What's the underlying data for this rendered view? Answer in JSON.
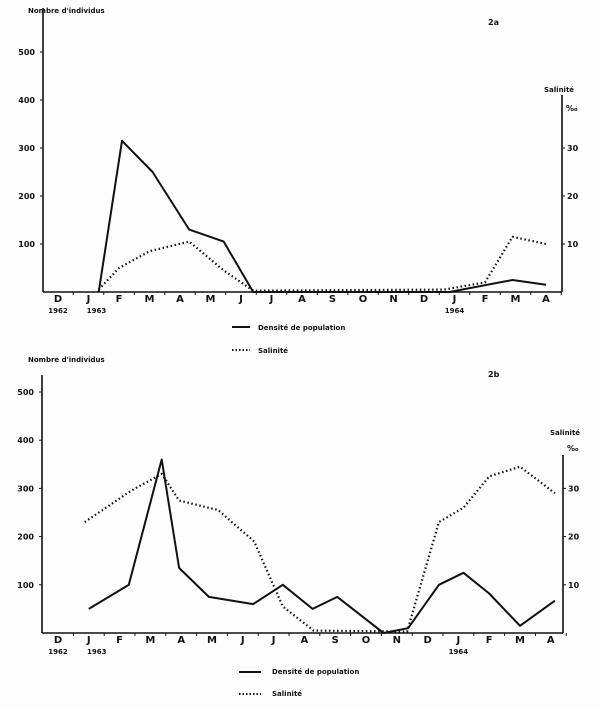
{
  "chart_data": [
    {
      "type": "line",
      "panel_label": "2a",
      "ylabel_left": "Nombre d'individus",
      "ylabel_right": "Salinité",
      "ylabel_right_unit": "‰",
      "x_tick_labels": [
        "D",
        "J",
        "F",
        "M",
        "A",
        "M",
        "J",
        "J",
        "A",
        "S",
        "O",
        "N",
        "D",
        "J",
        "F",
        "M",
        "A"
      ],
      "x_year_labels": [
        {
          "under": 0,
          "text": "1962"
        },
        {
          "under": 1,
          "text": "1963"
        },
        {
          "under": 13,
          "text": "1964"
        }
      ],
      "x_range": [
        "1962-12",
        "1964-04"
      ],
      "ylim_left": [
        0,
        550
      ],
      "yticks_left": [
        100,
        200,
        300,
        400,
        500
      ],
      "ylim_right": [
        0,
        55
      ],
      "yticks_right": [
        10,
        20,
        30
      ],
      "grid": false,
      "legend": {
        "position": "bottom",
        "entries": [
          {
            "label": "Densité de population",
            "style": "solid"
          },
          {
            "label": "Salinité",
            "style": "dotted"
          }
        ]
      },
      "series": [
        {
          "name": "Densité de population",
          "axis": "left",
          "style": "solid",
          "points": [
            [
              "1963-01-25",
              0
            ],
            [
              "1963-02-18",
              315
            ],
            [
              "1963-03-18",
              250
            ],
            [
              "1963-04-24",
              130
            ],
            [
              "1963-05-28",
              105
            ],
            [
              "1963-06-27",
              0
            ],
            [
              "1964-01-10",
              0
            ],
            [
              "1964-03-12",
              25
            ],
            [
              "1964-04-15",
              15
            ]
          ]
        },
        {
          "name": "Salinité",
          "axis": "right",
          "style": "dotted",
          "points": [
            [
              "1963-01-25",
              0.5
            ],
            [
              "1963-02-15",
              5
            ],
            [
              "1963-03-15",
              8.5
            ],
            [
              "1963-04-24",
              10.5
            ],
            [
              "1963-05-28",
              4.5
            ],
            [
              "1963-06-27",
              0.3
            ],
            [
              "1964-01-05",
              0.5
            ],
            [
              "1964-02-15",
              2
            ],
            [
              "1964-03-12",
              11.5
            ],
            [
              "1964-04-15",
              10
            ]
          ]
        }
      ]
    },
    {
      "type": "line",
      "panel_label": "2b",
      "ylabel_left": "Nombre d'individus",
      "ylabel_right": "Salinité",
      "ylabel_right_unit": "‰",
      "x_tick_labels": [
        "D",
        "J",
        "F",
        "M",
        "A",
        "M",
        "J",
        "J",
        "A",
        "S",
        "O",
        "N",
        "D",
        "J",
        "F",
        "M",
        "A"
      ],
      "x_year_labels": [
        {
          "under": 0,
          "text": "1962"
        },
        {
          "under": 1,
          "text": "1963"
        },
        {
          "under": 13,
          "text": "1964"
        }
      ],
      "x_range": [
        "1962-12",
        "1964-04"
      ],
      "ylim_left": [
        0,
        550
      ],
      "yticks_left": [
        100,
        200,
        300,
        400,
        500
      ],
      "ylim_right": [
        0,
        55
      ],
      "yticks_right": [
        10,
        20,
        30
      ],
      "grid": false,
      "legend": {
        "position": "bottom",
        "entries": [
          {
            "label": "Densité de population",
            "style": "solid"
          },
          {
            "label": "Salinité",
            "style": "dotted"
          }
        ]
      },
      "series": [
        {
          "name": "Densité de population",
          "axis": "left",
          "style": "solid",
          "points": [
            [
              "1963-01-15",
              50
            ],
            [
              "1963-02-24",
              100
            ],
            [
              "1963-03-26",
              360
            ],
            [
              "1963-04-13",
              135
            ],
            [
              "1963-05-12",
              75
            ],
            [
              "1963-06-25",
              60
            ],
            [
              "1963-07-24",
              100
            ],
            [
              "1963-08-23",
              50
            ],
            [
              "1963-09-17",
              75
            ],
            [
              "1963-11-02",
              0
            ],
            [
              "1963-11-26",
              10
            ],
            [
              "1963-12-26",
              100
            ],
            [
              "1964-01-20",
              125
            ],
            [
              "1964-02-15",
              82
            ],
            [
              "1964-03-15",
              15
            ],
            [
              "1964-04-19",
              67
            ]
          ]
        },
        {
          "name": "Salinité",
          "axis": "right",
          "style": "dotted",
          "points": [
            [
              "1963-01-11",
              23
            ],
            [
              "1963-02-26",
              29.5
            ],
            [
              "1963-03-26",
              33
            ],
            [
              "1963-04-13",
              27.5
            ],
            [
              "1963-05-21",
              25.5
            ],
            [
              "1963-06-26",
              19
            ],
            [
              "1963-07-24",
              5.5
            ],
            [
              "1963-08-24",
              0.5
            ],
            [
              "1963-11-25",
              0.3
            ],
            [
              "1963-12-26",
              23
            ],
            [
              "1964-01-20",
              26
            ],
            [
              "1964-02-15",
              32.5
            ],
            [
              "1964-03-15",
              34.5
            ],
            [
              "1964-04-19",
              29
            ]
          ]
        }
      ]
    }
  ]
}
